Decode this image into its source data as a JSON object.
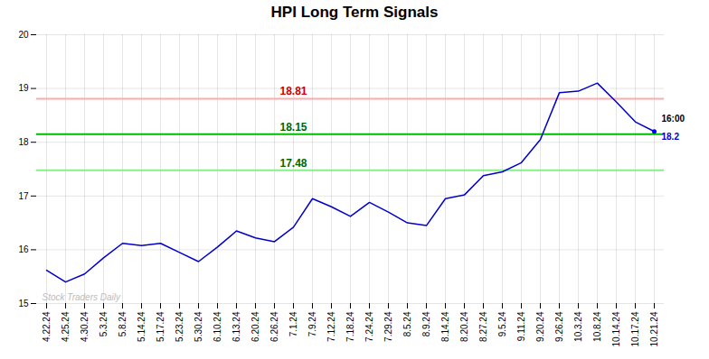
{
  "chart_data": {
    "type": "line",
    "title": "HPI Long Term Signals",
    "categories": [
      "4.22.24",
      "4.25.24",
      "4.30.24",
      "5.3.24",
      "5.8.24",
      "5.14.24",
      "5.17.24",
      "5.23.24",
      "5.30.24",
      "6.10.24",
      "6.13.24",
      "6.20.24",
      "6.26.24",
      "7.1.24",
      "7.9.24",
      "7.12.24",
      "7.18.24",
      "7.24.24",
      "7.29.24",
      "8.5.24",
      "8.9.24",
      "8.14.24",
      "8.20.24",
      "8.27.24",
      "9.5.24",
      "9.11.24",
      "9.20.24",
      "9.26.24",
      "10.3.24",
      "10.8.24",
      "10.14.24",
      "10.17.24",
      "10.21.24"
    ],
    "values": [
      15.62,
      15.4,
      15.55,
      15.85,
      16.12,
      16.08,
      16.12,
      15.95,
      15.78,
      16.05,
      16.35,
      16.22,
      16.15,
      16.42,
      16.95,
      16.8,
      16.62,
      16.88,
      16.7,
      16.5,
      16.45,
      16.95,
      17.02,
      17.38,
      17.45,
      17.62,
      18.05,
      18.92,
      18.95,
      19.1,
      18.75,
      18.38,
      18.2
    ],
    "color": "#0000CC",
    "last_point_color": "#0000FF",
    "hlines": [
      {
        "value": 18.81,
        "label": "18.81",
        "color": "#FFAAAA",
        "label_color": "#CC0000",
        "label_x": "7.1.24"
      },
      {
        "value": 18.15,
        "label": "18.15",
        "color": "#00BB00",
        "label_color": "#006600",
        "label_x": "7.1.24"
      },
      {
        "value": 17.48,
        "label": "17.48",
        "color": "#88EE88",
        "label_color": "#006600",
        "label_x": "7.1.24"
      }
    ],
    "annotations": [
      {
        "text": "16:00",
        "x": "10.21.24",
        "y": 18.2,
        "color": "#000000"
      },
      {
        "text": "18.2",
        "x": "10.21.24",
        "y": 18.2,
        "color": "#0000CC"
      }
    ],
    "watermark": "Stock Traders Daily",
    "ylim": [
      15.0,
      20.0
    ],
    "yticks": [
      15,
      16,
      17,
      18,
      19,
      20
    ],
    "grid": true
  }
}
